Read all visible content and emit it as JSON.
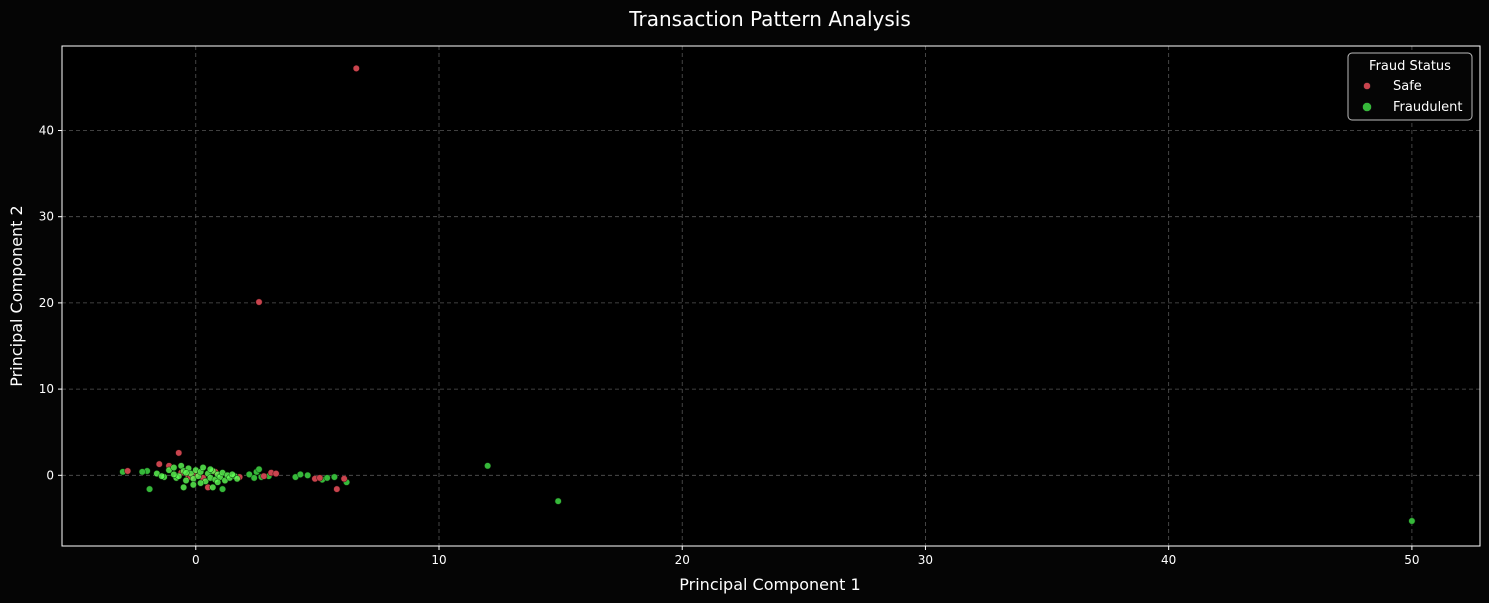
{
  "chart_data": {
    "type": "scatter",
    "title": "Transaction Pattern Analysis",
    "xlabel": "Principal Component 1",
    "ylabel": "Principal Component 2",
    "xlim": [
      -5.5,
      52.8
    ],
    "ylim": [
      -8.2,
      49.8
    ],
    "xticks": [
      0,
      10,
      20,
      30,
      40,
      50
    ],
    "yticks": [
      0,
      10,
      20,
      30,
      40
    ],
    "grid": true,
    "legend": {
      "title": "Fraud Status",
      "placement": "top-right"
    },
    "series": [
      {
        "name": "Safe",
        "color": "#c9444e",
        "points": [
          [
            6.6,
            47.2
          ],
          [
            2.6,
            20.1
          ],
          [
            -0.7,
            2.6
          ],
          [
            -1.5,
            1.3
          ],
          [
            -1.1,
            1.1
          ],
          [
            -2.8,
            0.5
          ],
          [
            -0.3,
            -0.1
          ],
          [
            0.0,
            0.1
          ],
          [
            0.3,
            -0.3
          ],
          [
            -0.6,
            0.3
          ],
          [
            0.5,
            -1.4
          ],
          [
            1.8,
            -0.2
          ],
          [
            3.1,
            0.3
          ],
          [
            3.3,
            0.2
          ],
          [
            2.8,
            -0.1
          ],
          [
            4.9,
            -0.4
          ],
          [
            5.1,
            -0.3
          ],
          [
            6.1,
            -0.4
          ],
          [
            5.8,
            -1.6
          ],
          [
            -0.2,
            -0.2
          ],
          [
            0.8,
            0.4
          ]
        ]
      },
      {
        "name": "Fraudulent",
        "color": "#36b83a",
        "points": [
          [
            50.0,
            -5.3
          ],
          [
            14.9,
            -3.0
          ],
          [
            12.0,
            1.1
          ],
          [
            -3.0,
            0.4
          ],
          [
            -2.0,
            0.5
          ],
          [
            -1.9,
            -1.6
          ],
          [
            -1.6,
            0.2
          ],
          [
            -1.3,
            -0.2
          ],
          [
            -1.1,
            0.6
          ],
          [
            -0.9,
            0.9
          ],
          [
            -0.8,
            -0.3
          ],
          [
            -0.6,
            1.1
          ],
          [
            -0.5,
            0.5
          ],
          [
            -0.4,
            -0.6
          ],
          [
            -0.3,
            0.8
          ],
          [
            -0.2,
            0.2
          ],
          [
            -0.1,
            -0.4
          ],
          [
            0.0,
            0.6
          ],
          [
            0.1,
            -0.1
          ],
          [
            0.2,
            0.4
          ],
          [
            0.3,
            0.9
          ],
          [
            0.4,
            -0.7
          ],
          [
            0.5,
            0.2
          ],
          [
            0.6,
            -0.3
          ],
          [
            0.7,
            0.5
          ],
          [
            0.8,
            -0.5
          ],
          [
            0.9,
            0.1
          ],
          [
            1.0,
            -0.2
          ],
          [
            1.1,
            0.3
          ],
          [
            1.2,
            -0.6
          ],
          [
            1.3,
            0.0
          ],
          [
            1.4,
            -0.3
          ],
          [
            1.6,
            -0.1
          ],
          [
            1.1,
            -1.6
          ],
          [
            0.7,
            -1.4
          ],
          [
            -0.5,
            -1.4
          ],
          [
            -0.1,
            -1.1
          ],
          [
            2.2,
            0.1
          ],
          [
            2.4,
            -0.3
          ],
          [
            2.5,
            0.4
          ],
          [
            2.6,
            0.7
          ],
          [
            2.7,
            -0.2
          ],
          [
            3.0,
            -0.1
          ],
          [
            4.1,
            -0.2
          ],
          [
            4.3,
            0.1
          ],
          [
            4.6,
            0.0
          ],
          [
            5.2,
            -0.5
          ],
          [
            5.4,
            -0.3
          ],
          [
            5.7,
            -0.2
          ],
          [
            6.2,
            -0.8
          ],
          [
            -2.2,
            0.4
          ],
          [
            -1.4,
            -0.1
          ],
          [
            -0.7,
            -0.1
          ],
          [
            -0.9,
            0.1
          ],
          [
            0.2,
            -0.9
          ],
          [
            1.5,
            0.1
          ],
          [
            1.7,
            -0.4
          ],
          [
            -0.4,
            0.3
          ],
          [
            0.6,
            0.7
          ],
          [
            0.9,
            -0.8
          ]
        ]
      }
    ]
  }
}
